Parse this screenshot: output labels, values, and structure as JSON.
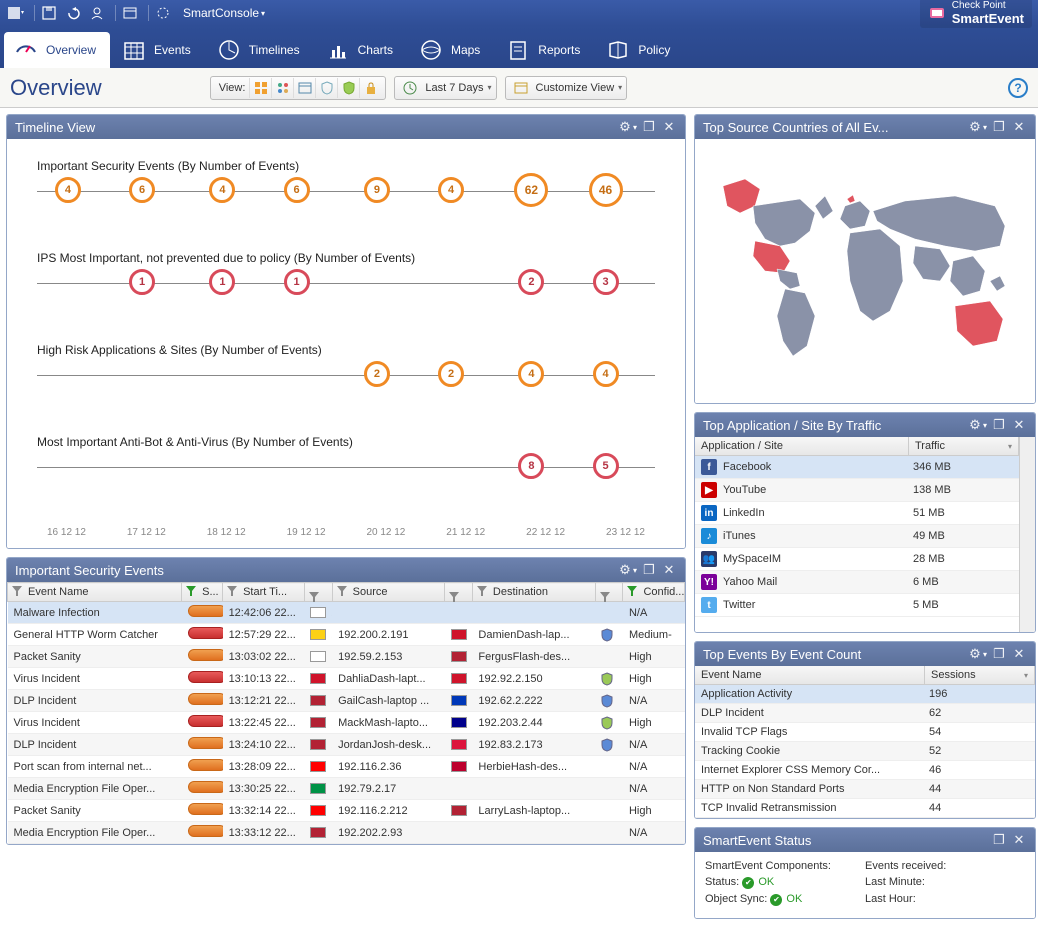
{
  "titlebar": {
    "appname": "SmartConsole",
    "brand_top": "Check Point",
    "brand_bottom": "SmartEvent"
  },
  "tabs": [
    {
      "label": "Overview",
      "active": true
    },
    {
      "label": "Events"
    },
    {
      "label": "Timelines"
    },
    {
      "label": "Charts"
    },
    {
      "label": "Maps"
    },
    {
      "label": "Reports"
    },
    {
      "label": "Policy"
    }
  ],
  "toolbar": {
    "title": "Overview",
    "view_label": "View:",
    "time_label": "Last 7 Days",
    "customize_label": "Customize View"
  },
  "timeline": {
    "title": "Timeline View",
    "axis": [
      "16 12 12",
      "17 12 12",
      "18 12 12",
      "19 12 12",
      "20 12 12",
      "21 12 12",
      "22 12 12",
      "23 12 12"
    ],
    "series": [
      {
        "title": "Important Security Events (By Number of Events)",
        "color": "orange",
        "points": [
          {
            "x": 5,
            "v": 4
          },
          {
            "x": 17,
            "v": 6
          },
          {
            "x": 30,
            "v": 4
          },
          {
            "x": 42,
            "v": 6
          },
          {
            "x": 55,
            "v": 9
          },
          {
            "x": 67,
            "v": 4
          },
          {
            "x": 80,
            "v": 62,
            "big": true
          },
          {
            "x": 92,
            "v": 46,
            "big": true
          }
        ]
      },
      {
        "title": "IPS Most Important, not prevented due to policy (By Number of Events)",
        "color": "red",
        "points": [
          {
            "x": 17,
            "v": 1
          },
          {
            "x": 30,
            "v": 1
          },
          {
            "x": 42,
            "v": 1
          },
          {
            "x": 80,
            "v": 2
          },
          {
            "x": 92,
            "v": 3
          }
        ]
      },
      {
        "title": "High Risk Applications & Sites (By Number of Events)",
        "color": "orange",
        "points": [
          {
            "x": 55,
            "v": 2
          },
          {
            "x": 67,
            "v": 2
          },
          {
            "x": 80,
            "v": 4
          },
          {
            "x": 92,
            "v": 4
          }
        ]
      },
      {
        "title": "Most Important Anti-Bot & Anti-Virus (By Number of Events)",
        "color": "red",
        "points": [
          {
            "x": 80,
            "v": 8
          },
          {
            "x": 92,
            "v": 5
          }
        ]
      }
    ]
  },
  "countries_panel": {
    "title": "Top Source Countries of All Ev...",
    "highlight_color": "#e0555f",
    "base_color": "#8a92a8"
  },
  "apps": {
    "title": "Top Application / Site By Traffic",
    "col1": "Application / Site",
    "col2": "Traffic",
    "rows": [
      {
        "name": "Facebook",
        "traffic": "346 MB",
        "bg": "#3b5998",
        "ch": "f",
        "sel": true
      },
      {
        "name": "YouTube",
        "traffic": "138 MB",
        "bg": "#cc0000",
        "ch": "▶"
      },
      {
        "name": "LinkedIn",
        "traffic": "51 MB",
        "bg": "#0a66c2",
        "ch": "in"
      },
      {
        "name": "iTunes",
        "traffic": "49 MB",
        "bg": "#1a8bd8",
        "ch": "♪"
      },
      {
        "name": "MySpaceIM",
        "traffic": "28 MB",
        "bg": "#2a3a6a",
        "ch": "👥"
      },
      {
        "name": "Yahoo Mail",
        "traffic": "6 MB",
        "bg": "#7b0099",
        "ch": "Y!"
      },
      {
        "name": "Twitter",
        "traffic": "5 MB",
        "bg": "#55acee",
        "ch": "t"
      }
    ]
  },
  "security_events": {
    "title": "Important Security Events",
    "cols": [
      "Event Name",
      "S...",
      "Start Ti...",
      "",
      "Source",
      "",
      "Destination",
      "",
      "Confid..."
    ],
    "rows": [
      {
        "name": "Malware Infection",
        "sev": "orange",
        "time": "12:42:06 22...",
        "sflag": "#ffffff",
        "source": "",
        "dflag": "",
        "dest": "",
        "conf": "N/A",
        "sel": true
      },
      {
        "name": "General HTTP Worm Catcher",
        "sev": "red",
        "time": "12:57:29 22...",
        "sflag": "#fcd116",
        "source": "192.200.2.191",
        "dflag": "#cf142b",
        "dest": "DamienDash-lap...",
        "shield": "#5b8ad6",
        "conf": "Medium-"
      },
      {
        "name": "Packet Sanity",
        "sev": "orange",
        "time": "13:03:02 22...",
        "sflag": "#ffffff",
        "source": "192.59.2.153",
        "dflag": "#b22234",
        "dest": "FergusFlash-des...",
        "conf": "High"
      },
      {
        "name": "Virus Incident",
        "sev": "red",
        "time": "13:10:13 22...",
        "sflag": "#cf142b",
        "source": "DahliaDash-lapt...",
        "dflag": "#cf142b",
        "dest": "192.92.2.150",
        "shield": "#9ac958",
        "conf": "High"
      },
      {
        "name": "DLP Incident",
        "sev": "orange",
        "time": "13:12:21 22...",
        "sflag": "#b22234",
        "source": "GailCash-laptop ...",
        "dflag": "#0038b8",
        "dest": "192.62.2.222",
        "shield": "#5b8ad6",
        "conf": "N/A"
      },
      {
        "name": "Virus Incident",
        "sev": "red",
        "time": "13:22:45 22...",
        "sflag": "#b22234",
        "source": "MackMash-lapto...",
        "dflag": "#00008b",
        "dest": "192.203.2.44",
        "shield": "#9ac958",
        "conf": "High"
      },
      {
        "name": "DLP Incident",
        "sev": "orange",
        "time": "13:24:10 22...",
        "sflag": "#b22234",
        "source": "JordanJosh-desk...",
        "dflag": "#dc143c",
        "dest": "192.83.2.173",
        "shield": "#5b8ad6",
        "conf": "N/A"
      },
      {
        "name": "Port scan from internal net...",
        "sev": "orange",
        "time": "13:28:09 22...",
        "sflag": "#ff0000",
        "source": "192.116.2.36",
        "dflag": "#bc002d",
        "dest": "HerbieHash-des...",
        "conf": "N/A"
      },
      {
        "name": "Media Encryption File Oper...",
        "sev": "orange",
        "time": "13:30:25 22...",
        "sflag": "#009246",
        "source": "192.79.2.17",
        "dflag": "",
        "dest": "",
        "conf": "N/A"
      },
      {
        "name": "Packet Sanity",
        "sev": "orange",
        "time": "13:32:14 22...",
        "sflag": "#ff0000",
        "source": "192.116.2.212",
        "dflag": "#b22234",
        "dest": "LarryLash-laptop...",
        "conf": "High"
      },
      {
        "name": "Media Encryption File Oper...",
        "sev": "orange",
        "time": "13:33:12 22...",
        "sflag": "#b22234",
        "source": "192.202.2.93",
        "dflag": "",
        "dest": "",
        "conf": "N/A"
      }
    ]
  },
  "event_count": {
    "title": "Top Events By Event Count",
    "col1": "Event Name",
    "col2": "Sessions",
    "rows": [
      {
        "name": "Application Activity",
        "v": "196",
        "sel": true
      },
      {
        "name": "DLP Incident",
        "v": "62"
      },
      {
        "name": "Invalid TCP Flags",
        "v": "54"
      },
      {
        "name": "Tracking Cookie",
        "v": "52"
      },
      {
        "name": "Internet Explorer CSS Memory Cor...",
        "v": "46"
      },
      {
        "name": "HTTP on Non Standard Ports",
        "v": "44"
      },
      {
        "name": "TCP Invalid Retransmission",
        "v": "44"
      }
    ]
  },
  "status": {
    "title": "SmartEvent Status",
    "comp_label": "SmartEvent Components:",
    "recv_label": "Events received:",
    "status_label": "Status:",
    "status_val": "OK",
    "sync_label": "Object Sync:",
    "sync_val": "OK",
    "lastmin": "Last Minute:",
    "lasthour": "Last Hour:"
  }
}
